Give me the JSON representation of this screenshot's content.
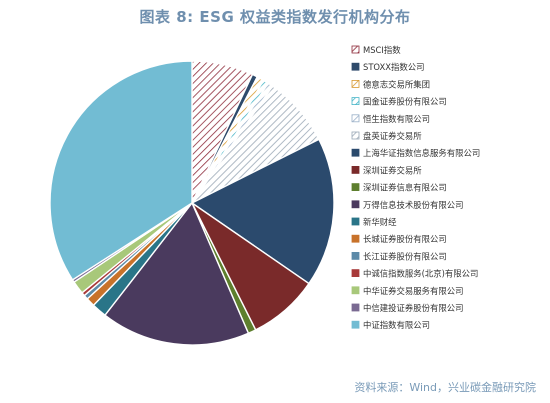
{
  "title": "图表 8:   ESG 权益类指数发行机构分布",
  "source": "资料来源：Wind，兴业碳金融研究院",
  "chart_data": {
    "type": "pie",
    "title": "图表 8:   ESG 权益类指数发行机构分布",
    "start_angle_deg": 0,
    "direction": "clockwise",
    "legend_position": "right",
    "slices": [
      {
        "name": "MSCI指数",
        "value": 7.0,
        "color": "#8e2b3a",
        "pattern": "hatch"
      },
      {
        "name": "STOXX指数公司",
        "value": 0.6,
        "color": "#2e4a6b",
        "pattern": "solid"
      },
      {
        "name": "德意志交易所集团",
        "value": 0.8,
        "color": "#d89a30",
        "pattern": "hatch"
      },
      {
        "name": "国金证券股份有限公司",
        "value": 0.6,
        "color": "#49b6c8",
        "pattern": "hatch"
      },
      {
        "name": "恒生指数有限公司",
        "value": 0.6,
        "color": "#9ab0c8",
        "pattern": "hatch"
      },
      {
        "name": "盘英证券交易所",
        "value": 8.0,
        "color": "#9aa8b6",
        "pattern": "hatch"
      },
      {
        "name": "上海华证指数信息服务有限公司",
        "value": 17.0,
        "color": "#2b4a6d",
        "pattern": "solid"
      },
      {
        "name": "深圳证券交易所",
        "value": 8.0,
        "color": "#7a2a2a",
        "pattern": "solid"
      },
      {
        "name": "深圳证券信息有限公司",
        "value": 0.9,
        "color": "#5e7f2e",
        "pattern": "solid"
      },
      {
        "name": "万得信息技术股份有限公司",
        "value": 17.0,
        "color": "#4a3a5e",
        "pattern": "solid"
      },
      {
        "name": "新华财经",
        "value": 1.7,
        "color": "#2a7588",
        "pattern": "solid"
      },
      {
        "name": "长城证券股份有限公司",
        "value": 1.0,
        "color": "#c8722a",
        "pattern": "solid"
      },
      {
        "name": "长江证券股份有限公司",
        "value": 0.5,
        "color": "#5c8aa8",
        "pattern": "solid"
      },
      {
        "name": "中诚信指数服务(北京)有限公司",
        "value": 0.4,
        "color": "#a83a3a",
        "pattern": "solid"
      },
      {
        "name": "中华证券交易服务有限公司",
        "value": 1.5,
        "color": "#a8c87a",
        "pattern": "solid"
      },
      {
        "name": "中信建投证券股份有限公司",
        "value": 0.3,
        "color": "#7a6a92",
        "pattern": "solid"
      },
      {
        "name": "中证指数有限公司",
        "value": 34.1,
        "color": "#72bcd3",
        "pattern": "solid"
      }
    ]
  }
}
